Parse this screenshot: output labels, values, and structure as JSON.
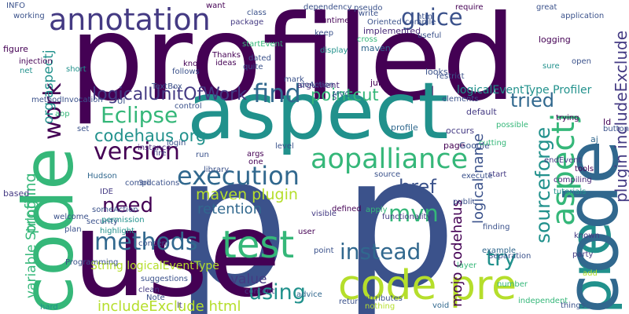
{
  "words": [
    {
      "text": "p",
      "color": "#3b528b",
      "rotated": false
    },
    {
      "text": "p",
      "color": "#3b528b",
      "rotated": false
    },
    {
      "text": "profiled",
      "color": "#440154",
      "rotated": false
    },
    {
      "text": "use",
      "color": "#440154",
      "rotated": false
    },
    {
      "text": "aspect",
      "color": "#21918c",
      "rotated": false
    },
    {
      "text": "code",
      "color": "#35b779",
      "rotated": true
    },
    {
      "text": "pre",
      "color": "#21918c",
      "rotated": true
    },
    {
      "text": "code",
      "color": "#31688e",
      "rotated": true
    },
    {
      "text": "aspectj",
      "color": "#35b779",
      "rotated": true
    },
    {
      "text": "annotation",
      "color": "#443a83",
      "rotated": false
    },
    {
      "text": "code pre",
      "color": "#b5de2b",
      "rotated": false
    },
    {
      "text": "test",
      "color": "#35b779",
      "rotated": false
    },
    {
      "text": "aopalliance",
      "color": "#35b779",
      "rotated": false
    },
    {
      "text": "execution",
      "color": "#31688e",
      "rotated": false
    },
    {
      "text": "methods",
      "color": "#31688e",
      "rotated": false
    },
    {
      "text": "version",
      "color": "#440154",
      "rotated": false
    },
    {
      "text": "Eclipse",
      "color": "#35b779",
      "rotated": false
    },
    {
      "text": "find",
      "color": "#31688e",
      "rotated": false
    },
    {
      "text": "need",
      "color": "#440154",
      "rotated": false
    },
    {
      "text": "guice",
      "color": "#3b528b",
      "rotated": false
    },
    {
      "text": "work",
      "color": "#440154",
      "rotated": true
    },
    {
      "text": "mvn",
      "color": "#35b779",
      "rotated": false
    },
    {
      "text": "instead",
      "color": "#31688e",
      "rotated": false
    },
    {
      "text": "try",
      "color": "#21918c",
      "rotated": false
    },
    {
      "text": "using",
      "color": "#21918c",
      "rotated": false
    },
    {
      "text": "href",
      "color": "#3b528b",
      "rotated": false
    },
    {
      "text": "tried",
      "color": "#31688e",
      "rotated": false
    },
    {
      "text": "pointcut",
      "color": "#35b779",
      "rotated": false
    },
    {
      "text": "codehaus org",
      "color": "#21918c",
      "rotated": false
    },
    {
      "text": "logicalUnitOfWork",
      "color": "#443a83",
      "rotated": false
    },
    {
      "text": "sourceforge",
      "color": "#21918c",
      "rotated": true
    },
    {
      "text": "plugin includeExclude",
      "color": "#443a83",
      "rotated": true
    },
    {
      "text": "maven plugin",
      "color": "#b5de2b",
      "rotated": false
    },
    {
      "text": "retention",
      "color": "#31688e",
      "rotated": false
    },
    {
      "text": "value",
      "color": "#443a83",
      "rotated": false
    },
    {
      "text": "includeExclude html",
      "color": "#b5de2b",
      "rotated": false
    },
    {
      "text": "profiling",
      "color": "#35b779",
      "rotated": true
    },
    {
      "text": "org aspectj",
      "color": "#21918c",
      "rotated": true
    },
    {
      "text": "mojo codehaus",
      "color": "#440154",
      "rotated": true
    },
    {
      "text": "logical name",
      "color": "#3b528b",
      "rotated": true
    },
    {
      "text": "variable String",
      "color": "#35b779",
      "rotated": true
    },
    {
      "text": "logicalEventType Profiler",
      "color": "#21918c",
      "rotated": false
    },
    {
      "text": "String logicalEventType",
      "color": "#b5de2b",
      "rotated": false
    },
    {
      "text": "implemented",
      "color": "#482878",
      "rotated": false
    },
    {
      "text": "maven",
      "color": "#31688e",
      "rotated": false
    },
    {
      "text": "logging",
      "color": "#440154",
      "rotated": false
    },
    {
      "text": "looks",
      "color": "#3b528b",
      "rotated": false
    },
    {
      "text": "junit",
      "color": "#440154",
      "rotated": false
    },
    {
      "text": "argument",
      "color": "#482878",
      "rotated": false
    },
    {
      "text": "default",
      "color": "#443a83",
      "rotated": false
    },
    {
      "text": "profile",
      "color": "#31688e",
      "rotated": false
    },
    {
      "text": "occurs",
      "color": "#443a83",
      "rotated": false
    },
    {
      "text": "page",
      "color": "#440154",
      "rotated": false
    },
    {
      "text": "Google",
      "color": "#3b528b",
      "rotated": false
    },
    {
      "text": "Id",
      "color": "#440154",
      "rotated": false
    },
    {
      "text": "aj",
      "color": "#31688e",
      "rotated": false
    },
    {
      "text": "endEvent",
      "color": "#443a83",
      "rotated": false
    },
    {
      "text": "compiling",
      "color": "#482878",
      "rotated": false
    },
    {
      "text": "tutorials",
      "color": "#21918c",
      "rotated": false
    },
    {
      "text": "start",
      "color": "#443a83",
      "rotated": false
    },
    {
      "text": "known",
      "color": "#443a83",
      "rotated": false
    },
    {
      "text": "defined",
      "color": "#440154",
      "rotated": false
    },
    {
      "text": "example",
      "color": "#31688e",
      "rotated": false
    },
    {
      "text": "attributes",
      "color": "#3b528b",
      "rotated": false
    },
    {
      "text": "returning",
      "color": "#3b528b",
      "rotated": false
    },
    {
      "text": "nothing",
      "color": "#b5de2b",
      "rotated": false
    },
    {
      "text": "void",
      "color": "#31688e",
      "rotated": false
    },
    {
      "text": "things",
      "color": "#3b528b",
      "rotated": false
    },
    {
      "text": "add",
      "color": "#b5de2b",
      "rotated": false
    },
    {
      "text": "hard",
      "color": "#21918c",
      "rotated": false
    },
    {
      "text": "Note",
      "color": "#3b528b",
      "rotated": false
    },
    {
      "text": "clean",
      "color": "#443a83",
      "rotated": false
    },
    {
      "text": "lt",
      "color": "#443a83",
      "rotated": false
    },
    {
      "text": "content",
      "color": "#443a83",
      "rotated": false
    },
    {
      "text": "advice",
      "color": "#31688e",
      "rotated": false
    },
    {
      "text": "user",
      "color": "#440154",
      "rotated": false
    },
    {
      "text": "visible",
      "color": "#443a83",
      "rotated": false
    },
    {
      "text": "concern",
      "color": "#3b528b",
      "rotated": false
    },
    {
      "text": "highlight",
      "color": "#21918c",
      "rotated": false
    },
    {
      "text": "plan",
      "color": "#3b528b",
      "rotated": false
    },
    {
      "text": "IDE",
      "color": "#443a83",
      "rotated": false
    },
    {
      "text": "Hudson",
      "color": "#31688e",
      "rotated": false
    },
    {
      "text": "set",
      "color": "#3b528b",
      "rotated": false
    },
    {
      "text": "instance",
      "color": "#482878",
      "rotated": false
    },
    {
      "text": "fire",
      "color": "#443a83",
      "rotated": false
    },
    {
      "text": "args",
      "color": "#440154",
      "rotated": false
    },
    {
      "text": "one",
      "color": "#440154",
      "rotated": false
    },
    {
      "text": "library",
      "color": "#3b528b",
      "rotated": false
    },
    {
      "text": "based",
      "color": "#443a83",
      "rotated": false
    },
    {
      "text": "figure",
      "color": "#440154",
      "rotated": false
    },
    {
      "text": "injection",
      "color": "#440154",
      "rotated": false
    },
    {
      "text": "net",
      "color": "#21918c",
      "rotated": false
    },
    {
      "text": "short",
      "color": "#21918c",
      "rotated": false
    },
    {
      "text": "INFO",
      "color": "#3b528b",
      "rotated": false
    },
    {
      "text": "working",
      "color": "#3b528b",
      "rotated": false
    },
    {
      "text": "class",
      "color": "#3b528b",
      "rotated": false
    },
    {
      "text": "package",
      "color": "#443a83",
      "rotated": false
    },
    {
      "text": "dependency",
      "color": "#3b528b",
      "rotated": false
    },
    {
      "text": "runtime",
      "color": "#440154",
      "rotated": false
    },
    {
      "text": "compile",
      "color": "#3b528b",
      "rotated": false
    },
    {
      "text": "require",
      "color": "#440154",
      "rotated": false
    },
    {
      "text": "great",
      "color": "#3b528b",
      "rotated": false
    },
    {
      "text": "application",
      "color": "#3b528b",
      "rotated": false
    },
    {
      "text": "open",
      "color": "#3b528b",
      "rotated": false
    },
    {
      "text": "sure",
      "color": "#21918c",
      "rotated": false
    },
    {
      "text": "startEvent",
      "color": "#35b779",
      "rotated": false
    },
    {
      "text": "dated",
      "color": "#3b528b",
      "rotated": false
    },
    {
      "text": "quite",
      "color": "#3b528b",
      "rotated": false
    },
    {
      "text": "Thanks",
      "color": "#440154",
      "rotated": false
    },
    {
      "text": "ideas",
      "color": "#440154",
      "rotated": false
    },
    {
      "text": "know",
      "color": "#440154",
      "rotated": false
    },
    {
      "text": "TextBox",
      "color": "#3b528b",
      "rotated": false
    },
    {
      "text": "MVC",
      "color": "#31688e",
      "rotated": false
    },
    {
      "text": "Programming",
      "color": "#3b528b",
      "rotated": false
    },
    {
      "text": "someAction",
      "color": "#3b528b",
      "rotated": false
    },
    {
      "text": "independent",
      "color": "#35b779",
      "rotated": false
    },
    {
      "text": "party",
      "color": "#443a83",
      "rotated": false
    },
    {
      "text": "welcome",
      "color": "#3b528b",
      "rotated": false
    },
    {
      "text": "security",
      "color": "#3b528b",
      "rotated": false
    },
    {
      "text": "permission",
      "color": "#21918c",
      "rotated": false
    },
    {
      "text": "login",
      "color": "#3b528b",
      "rotated": false
    },
    {
      "text": "aop",
      "color": "#35b779",
      "rotated": false
    },
    {
      "text": "elements",
      "color": "#3b528b",
      "rotated": false
    },
    {
      "text": "trying",
      "color": "#440154",
      "rotated": false
    },
    {
      "text": "possible",
      "color": "#35b779",
      "rotated": false
    },
    {
      "text": "button",
      "color": "#3b528b",
      "rotated": false
    },
    {
      "text": "tools",
      "color": "#440154",
      "rotated": false
    },
    {
      "text": "number",
      "color": "#35b779",
      "rotated": false
    },
    {
      "text": "Separation",
      "color": "#3b528b",
      "rotated": false
    },
    {
      "text": "public",
      "color": "#3b528b",
      "rotated": false
    },
    {
      "text": "functionality",
      "color": "#443a83",
      "rotated": false
    },
    {
      "text": "finding",
      "color": "#3b528b",
      "rotated": false
    },
    {
      "text": "layer",
      "color": "#35b779",
      "rotated": false
    },
    {
      "text": "apply",
      "color": "#35b779",
      "rotated": false
    },
    {
      "text": "source",
      "color": "#3b528b",
      "rotated": false
    },
    {
      "text": "point",
      "color": "#3b528b",
      "rotated": false
    },
    {
      "text": "cross",
      "color": "#35b779",
      "rotated": false
    },
    {
      "text": "useful",
      "color": "#3b528b",
      "rotated": false
    },
    {
      "text": "keep",
      "color": "#3b528b",
      "rotated": false
    },
    {
      "text": "restrict",
      "color": "#3b528b",
      "rotated": false
    },
    {
      "text": "doAction",
      "color": "#3b528b",
      "rotated": false
    },
    {
      "text": "mark",
      "color": "#3b528b",
      "rotated": false
    },
    {
      "text": "display",
      "color": "#21918c",
      "rotated": false
    },
    {
      "text": "file",
      "color": "#440154",
      "rotated": false
    },
    {
      "text": "run",
      "color": "#3b528b",
      "rotated": false
    },
    {
      "text": "level",
      "color": "#3b528b",
      "rotated": false
    },
    {
      "text": "3rd",
      "color": "#3b528b",
      "rotated": false
    },
    {
      "text": "complications",
      "color": "#3b528b",
      "rotated": false
    },
    {
      "text": "UI",
      "color": "#3b528b",
      "rotated": false
    },
    {
      "text": "control",
      "color": "#3b528b",
      "rotated": false
    },
    {
      "text": "follows",
      "color": "#3b528b",
      "rotated": false
    },
    {
      "text": "want",
      "color": "#440154",
      "rotated": false
    },
    {
      "text": "pseudo",
      "color": "#3b528b",
      "rotated": false
    },
    {
      "text": "html",
      "color": "#3b528b",
      "rotated": false
    },
    {
      "text": "write",
      "color": "#3b528b",
      "rotated": false
    },
    {
      "text": "Oriented",
      "color": "#3b528b",
      "rotated": false
    },
    {
      "text": "suggestions",
      "color": "#3b528b",
      "rotated": false
    },
    {
      "text": "execute",
      "color": "#3b528b",
      "rotated": false
    },
    {
      "text": "methodInvocation",
      "color": "#3b528b",
      "rotated": false
    },
    {
      "text": "cutting",
      "color": "#35b779",
      "rotated": false
    },
    {
      "text": "S",
      "color": "#3b528b",
      "rotated": false
    },
    {
      "text": "cancel",
      "color": "#b5de2b",
      "rotated": false
    },
    {
      "text": "understand",
      "color": "#3b528b",
      "rotated": false
    }
  ]
}
